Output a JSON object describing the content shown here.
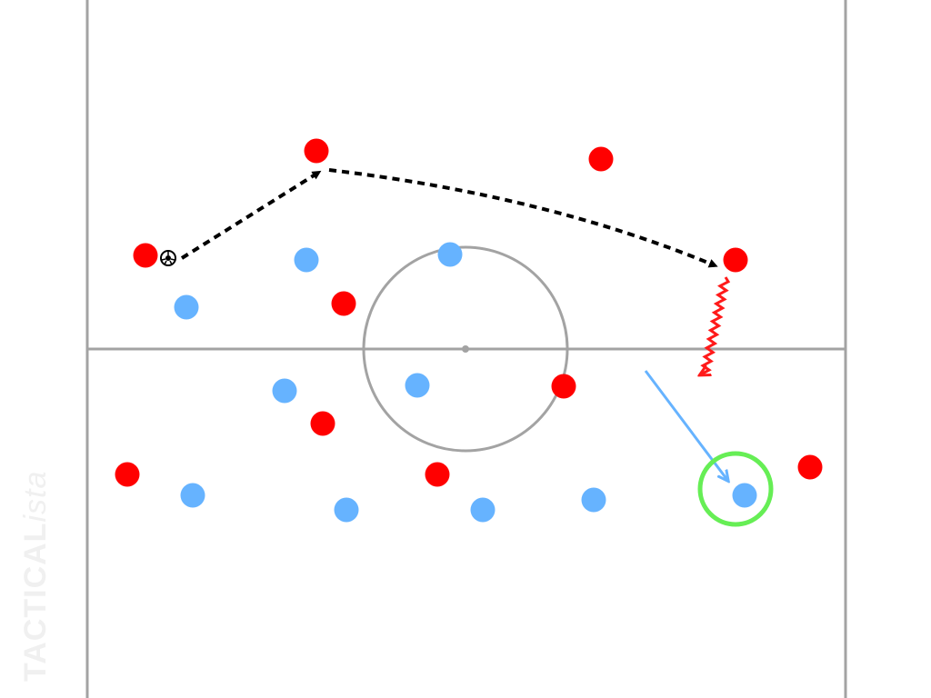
{
  "watermark": {
    "brand_bold": "TACTICAL",
    "brand_italic": "ista"
  },
  "colors": {
    "pitch_lines": "#a3a3a3",
    "team_red": "#ff0000",
    "team_blue": "#66b3ff",
    "pass_arrow": "#000000",
    "run_arrow_red": "#ff1a1a",
    "run_arrow_blue": "#66b3ff",
    "highlight_ring": "#66ee55"
  },
  "icons": {
    "ball": "soccer-ball-icon"
  }
}
